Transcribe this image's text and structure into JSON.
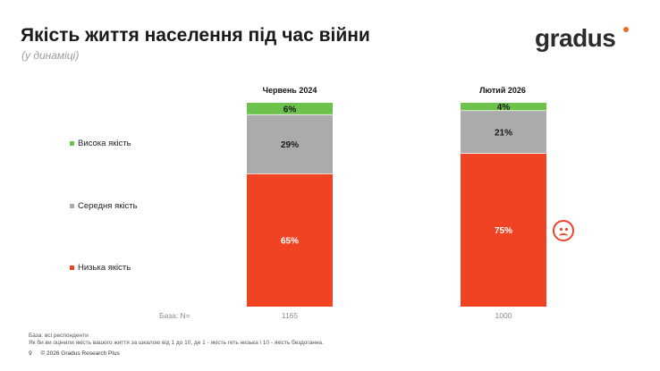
{
  "header": {
    "title": "Якість життя населення під час війни",
    "subtitle": "(у динаміці)"
  },
  "brand": {
    "logo_text": "gradus",
    "accent_color": "#f26a22"
  },
  "colors": {
    "high": "#6cc24a",
    "medium": "#ababab",
    "low": "#ef4324"
  },
  "legend": [
    {
      "label": "Висока якість",
      "key": "high"
    },
    {
      "label": "Середня якість",
      "key": "medium"
    },
    {
      "label": "Низька якість",
      "key": "low"
    }
  ],
  "chart_data": {
    "type": "bar",
    "stacked": true,
    "percent": true,
    "categories": [
      "Червень 2024",
      "Лютий 2026"
    ],
    "series": [
      {
        "name": "Висока якість",
        "key": "high",
        "values": [
          6,
          4
        ]
      },
      {
        "name": "Середня якість",
        "key": "medium",
        "values": [
          29,
          21
        ]
      },
      {
        "name": "Низька якість",
        "key": "low",
        "values": [
          65,
          75
        ]
      }
    ],
    "data_labels": [
      [
        "6%",
        "29%",
        "65%"
      ],
      [
        "4%",
        "21%",
        "75%"
      ]
    ],
    "base_label": "База: N=",
    "base_values": [
      "1165",
      "1000"
    ],
    "legend_position": "left",
    "grid": false
  },
  "emoji": "sad-face",
  "footnote": {
    "line1": "База: всі респонденти",
    "line2": "Як би ви оцінили якість вашого життя за шкалою від 1 до 10, де 1 - якість геть низька і 10 - якість бездоганна."
  },
  "footer": {
    "page_number": "9",
    "copyright": "© 2026 Gradus Research Plus"
  }
}
